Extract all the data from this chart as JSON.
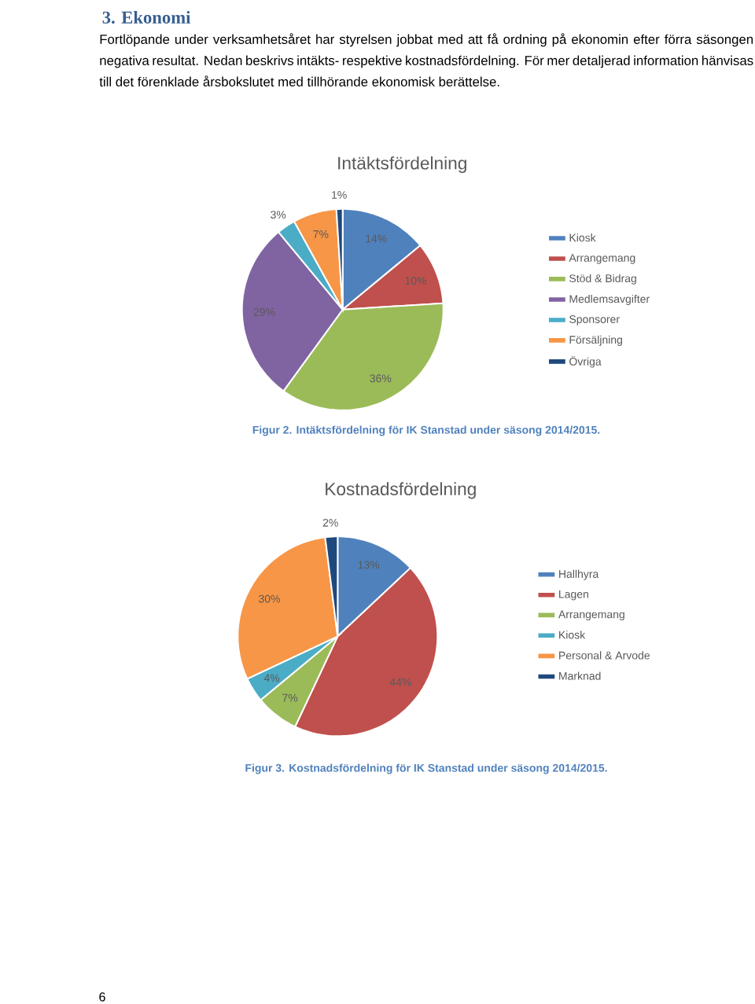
{
  "chart_data": [
    {
      "type": "pie",
      "title": "Intäktsfördelning",
      "categories": [
        "Kiosk",
        "Arrangemang",
        "Stöd & Bidrag",
        "Medlemsavgifter",
        "Sponsorer",
        "Försäljning",
        "Övriga"
      ],
      "values": [
        14,
        10,
        36,
        29,
        3,
        7,
        1
      ],
      "value_labels": [
        "14%",
        "10%",
        "36%",
        "29%",
        "3%",
        "7%",
        "1%"
      ],
      "colors": [
        "#4f81bd",
        "#c0504d",
        "#9bbb59",
        "#8064a2",
        "#4bacc6",
        "#f79646",
        "#1f497d"
      ],
      "legend": "right",
      "annotations": [
        "3. Ekonomi",
        "Fortlöpande under verksamhetsåret har styrelsen jobbat med att få ordning på ekonomin efter förra säsongen negativa resultat. Nedan beskrivs intäkts- respektive kostnadsfördelning. För mer detaljerad information hänvisas till det förenklade årsbokslutet med tillhörande ekonomisk berättelse.",
        "Figur 2. Intäktsfördelning för IK Stanstad under säsong 2014/2015."
      ]
    },
    {
      "type": "pie",
      "title": "Kostnadsfördelning",
      "categories": [
        "Hallhyra",
        "Lagen",
        "Arrangemang",
        "Kiosk",
        "Personal & Arvode",
        "Marknad"
      ],
      "values": [
        13,
        44,
        7,
        4,
        30,
        2
      ],
      "value_labels": [
        "13%",
        "44%",
        "7%",
        "4%",
        "30%",
        "2%"
      ],
      "colors": [
        "#4f81bd",
        "#c0504d",
        "#9bbb59",
        "#4bacc6",
        "#f79646",
        "#1f497d"
      ],
      "legend": "right",
      "annotations": [
        "Figur 3. Kostnadsfördelning för IK Stanstad under säsong 2014/2015.",
        "6"
      ]
    }
  ]
}
